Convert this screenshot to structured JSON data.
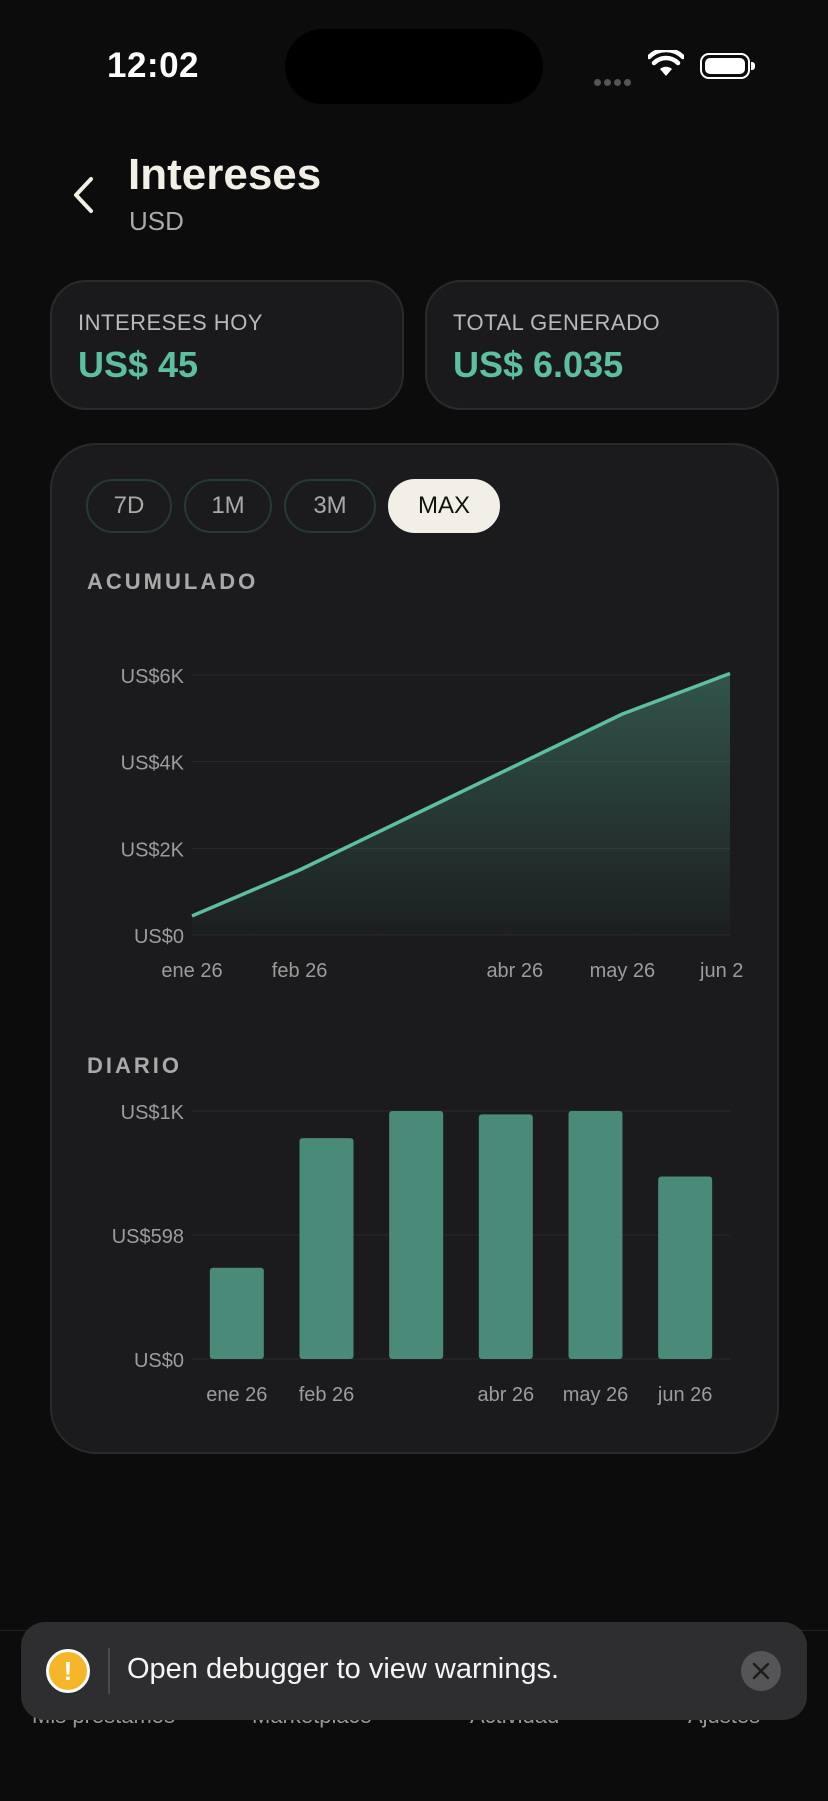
{
  "status_bar": {
    "time": "12:02"
  },
  "header": {
    "title": "Intereses",
    "subtitle": "USD"
  },
  "stats": [
    {
      "label": "INTERESES HOY",
      "value": "US$ 45"
    },
    {
      "label": "TOTAL GENERADO",
      "value": "US$ 6.035"
    }
  ],
  "tabs": [
    {
      "label": "7D",
      "active": false
    },
    {
      "label": "1M",
      "active": false
    },
    {
      "label": "3M",
      "active": false
    },
    {
      "label": "MAX",
      "active": true
    }
  ],
  "colors": {
    "accent": "#5cbfa0",
    "bar": "#4a8a78",
    "card": "#1b1b1d",
    "background": "#0c0c0c"
  },
  "chart_data": [
    {
      "type": "area",
      "section_label": "ACUMULADO",
      "y_ticks": [
        "US$6K",
        "US$4K",
        "US$2K",
        "US$0"
      ],
      "y_tick_values": [
        6000,
        4000,
        2000,
        0
      ],
      "ylim": [
        0,
        6000
      ],
      "x_tick_labels": [
        "ene 26",
        "feb 26",
        "abr 26",
        "may 26",
        "jun 2"
      ],
      "x_tick_positions": [
        0,
        1,
        3,
        4,
        5
      ],
      "x": [
        0,
        1,
        2,
        3,
        4,
        5
      ],
      "values": [
        440,
        1500,
        2700,
        3900,
        5100,
        6035
      ],
      "grid": true
    },
    {
      "type": "bar",
      "section_label": "DIARIO",
      "y_ticks": [
        "US$1K",
        "US$598",
        "US$0"
      ],
      "y_tick_values": [
        1196,
        598,
        0
      ],
      "ylim": [
        0,
        1196
      ],
      "categories": [
        "ene 26",
        "feb 26",
        "",
        "abr 26",
        "may 26",
        "jun 26"
      ],
      "values": [
        440,
        1065,
        1196,
        1180,
        1196,
        880
      ],
      "grid": true
    }
  ],
  "toast": {
    "message": "Open debugger to view warnings."
  },
  "bottom_nav": {
    "items": [
      "Mis préstamos",
      "Marketplace",
      "Actividad",
      "Ajustes"
    ]
  }
}
